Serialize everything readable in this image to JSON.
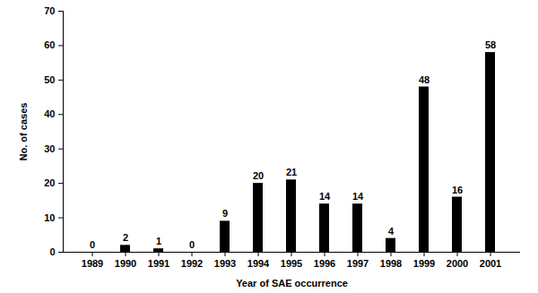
{
  "chart_data": {
    "type": "bar",
    "x_label": "Year of SAE occurrence",
    "y_label": "No. of cases",
    "categories": [
      "1989",
      "1990",
      "1991",
      "1992",
      "1993",
      "1994",
      "1995",
      "1996",
      "1997",
      "1998",
      "1999",
      "2000",
      "2001"
    ],
    "values": [
      0,
      2,
      1,
      0,
      9,
      20,
      21,
      14,
      14,
      4,
      48,
      16,
      58
    ],
    "color": "#000000",
    "ylim": [
      0,
      70
    ],
    "yticks": [
      0,
      10,
      20,
      30,
      40,
      50,
      60,
      70
    ],
    "grid": false,
    "data_labels": true
  }
}
